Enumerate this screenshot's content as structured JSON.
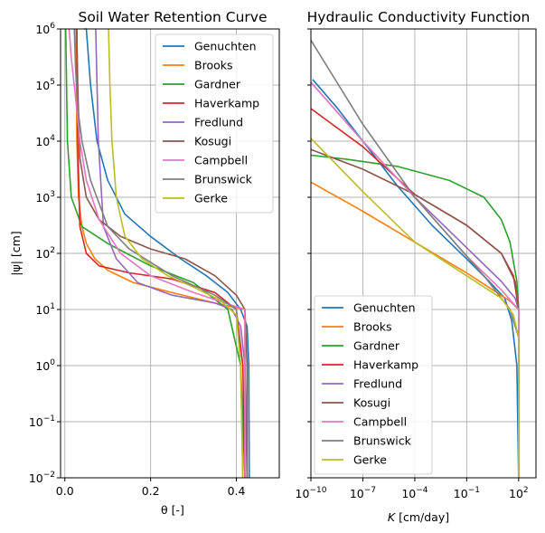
{
  "chart_data": [
    {
      "type": "line",
      "title": "Soil Water Retention Curve",
      "xlabel": "θ [-]",
      "ylabel": "|ψ| [cm]",
      "xlim": [
        -0.01,
        0.5
      ],
      "ylim": [
        0.01,
        1000000
      ],
      "yscale": "log",
      "grid": true,
      "legend_position": "upper-right",
      "x_ticks": [
        {
          "value": 0,
          "label": "0.0"
        },
        {
          "value": 0.2,
          "label": "0.2"
        },
        {
          "value": 0.4,
          "label": "0.4"
        }
      ],
      "y_ticks": [
        {
          "exp": -2,
          "label": "10",
          "sup": "−2"
        },
        {
          "exp": -1,
          "label": "10",
          "sup": "−1"
        },
        {
          "exp": 0,
          "label": "10",
          "sup": "0"
        },
        {
          "exp": 1,
          "label": "10",
          "sup": "1"
        },
        {
          "exp": 2,
          "label": "10",
          "sup": "2"
        },
        {
          "exp": 3,
          "label": "10",
          "sup": "3"
        },
        {
          "exp": 4,
          "label": "10",
          "sup": "4"
        },
        {
          "exp": 5,
          "label": "10",
          "sup": "5"
        },
        {
          "exp": 6,
          "label": "10",
          "sup": "6"
        }
      ],
      "series": [
        {
          "name": "Genuchten",
          "color": "#1f77b4",
          "x": [
            0.43,
            0.429,
            0.425,
            0.41,
            0.38,
            0.33,
            0.27,
            0.2,
            0.14,
            0.1,
            0.075,
            0.06,
            0.05,
            0.045
          ],
          "y": [
            0.01,
            1,
            5,
            10,
            20,
            40,
            80,
            200,
            500,
            2000,
            10000,
            100000,
            1000000,
            1000000
          ]
        },
        {
          "name": "Brooks",
          "color": "#ff7f0e",
          "x": [
            0.42,
            0.42,
            0.42,
            0.35,
            0.25,
            0.16,
            0.1,
            0.07,
            0.05,
            0.04,
            0.032,
            0.028,
            0.026
          ],
          "y": [
            0.01,
            1,
            10,
            13,
            20,
            30,
            50,
            80,
            150,
            300,
            1000,
            10000,
            1000000
          ]
        },
        {
          "name": "Gardner",
          "color": "#2ca02c",
          "x": [
            0.42,
            0.41,
            0.38,
            0.3,
            0.2,
            0.1,
            0.04,
            0.015,
            0.006,
            0.002
          ],
          "y": [
            0.01,
            1,
            10,
            30,
            60,
            150,
            300,
            1000,
            10000,
            1000000
          ]
        },
        {
          "name": "Haverkamp",
          "color": "#d62728",
          "x": [
            0.42,
            0.415,
            0.4,
            0.35,
            0.25,
            0.15,
            0.08,
            0.05,
            0.035,
            0.03,
            0.028
          ],
          "y": [
            0.01,
            1,
            10,
            20,
            35,
            45,
            60,
            100,
            300,
            10000,
            1000000
          ]
        },
        {
          "name": "Fredlund",
          "color": "#9467bd",
          "x": [
            0.425,
            0.42,
            0.41,
            0.39,
            0.35,
            0.25,
            0.17,
            0.12,
            0.09,
            0.078,
            0.072
          ],
          "y": [
            0.01,
            1,
            5,
            10,
            13,
            18,
            30,
            80,
            300,
            10000,
            1000000
          ]
        },
        {
          "name": "Kosugi",
          "color": "#8c564b",
          "x": [
            0.425,
            0.425,
            0.42,
            0.4,
            0.35,
            0.28,
            0.2,
            0.13,
            0.08,
            0.05,
            0.035,
            0.03,
            0.028
          ],
          "y": [
            0.01,
            1,
            10,
            18,
            40,
            80,
            120,
            200,
            400,
            1000,
            5000,
            100000,
            1000000
          ]
        },
        {
          "name": "Campbell",
          "color": "#e377c2",
          "x": [
            0.42,
            0.42,
            0.42,
            0.3,
            0.2,
            0.13,
            0.08,
            0.05,
            0.035,
            0.025,
            0.015,
            0.01
          ],
          "y": [
            0.01,
            1,
            10,
            20,
            40,
            100,
            400,
            2000,
            10000,
            60000,
            300000,
            1000000
          ]
        },
        {
          "name": "Brunswick",
          "color": "#7f7f7f",
          "x": [
            0.415,
            0.41,
            0.4,
            0.35,
            0.25,
            0.15,
            0.1,
            0.06,
            0.04,
            0.03,
            0.025,
            0.022
          ],
          "y": [
            0.01,
            1,
            10,
            18,
            40,
            120,
            300,
            2000,
            10000,
            40000,
            200000,
            1000000
          ]
        },
        {
          "name": "Gerke",
          "color": "#bcbd22",
          "x": [
            0.415,
            0.41,
            0.4,
            0.36,
            0.3,
            0.24,
            0.18,
            0.14,
            0.12,
            0.11,
            0.105,
            0.102
          ],
          "y": [
            0.01,
            1,
            8,
            15,
            25,
            40,
            80,
            200,
            1000,
            10000,
            100000,
            1000000
          ]
        }
      ]
    },
    {
      "type": "line",
      "title": "Hydraulic Conductivity Function",
      "xlabel": "K [cm/day]",
      "xlabel_italic": "K",
      "xlabel_rest": " [cm/day]",
      "ylabel": "",
      "xscale": "log",
      "yscale": "log",
      "xlim_exp": [
        -10,
        3
      ],
      "ylim": [
        0.01,
        1000000
      ],
      "grid": true,
      "legend_position": "lower-left",
      "x_ticks": [
        {
          "exp": -10,
          "label": "10",
          "sup": "−10"
        },
        {
          "exp": -7,
          "label": "10",
          "sup": "−7"
        },
        {
          "exp": -4,
          "label": "10",
          "sup": "−4"
        },
        {
          "exp": -1,
          "label": "10",
          "sup": "−1"
        },
        {
          "exp": 2,
          "label": "10",
          "sup": "2"
        }
      ],
      "series": [
        {
          "name": "Genuchten",
          "color": "#1f77b4",
          "logx": [
            2.0,
            1.9,
            1.6,
            1.2,
            0.3,
            -1.0,
            -3.0,
            -5.0,
            -7.0,
            -8.5,
            -9.9
          ],
          "logy": [
            -2.0,
            0.0,
            0.8,
            1.2,
            1.5,
            1.9,
            2.5,
            3.2,
            4.0,
            4.6,
            5.1
          ]
        },
        {
          "name": "Brooks",
          "color": "#ff7f0e",
          "logx": [
            2.0,
            2.0,
            1.5,
            -1.0,
            -4.0,
            -7.0,
            -10.0
          ],
          "logy": [
            -2.0,
            1.0,
            1.15,
            1.65,
            2.2,
            2.75,
            3.27
          ]
        },
        {
          "name": "Gardner",
          "color": "#2ca02c",
          "logx": [
            2.0,
            2.0,
            1.9,
            1.5,
            1.0,
            0.0,
            -2.0,
            -5.0,
            -8.0,
            -10.0
          ],
          "logy": [
            -2.0,
            1.0,
            1.5,
            2.2,
            2.6,
            3.0,
            3.3,
            3.55,
            3.68,
            3.75
          ]
        },
        {
          "name": "Haverkamp",
          "color": "#d62728",
          "logx": [
            2.0,
            2.0,
            1.7,
            1.0,
            -1.0,
            -4.0,
            -7.0,
            -10.0
          ],
          "logy": [
            -2.0,
            1.0,
            1.6,
            2.0,
            2.5,
            3.05,
            3.9,
            4.58
          ]
        },
        {
          "name": "Fredlund",
          "color": "#9467bd",
          "logx": [
            2.0,
            2.0,
            1.8,
            1.0,
            -1.0,
            -4.0,
            -7.0,
            -10.0
          ],
          "logy": [
            -2.0,
            1.0,
            1.2,
            1.5,
            2.1,
            3.0,
            4.0,
            5.05
          ]
        },
        {
          "name": "Kosugi",
          "color": "#8c564b",
          "logx": [
            2.0,
            2.0,
            1.8,
            1.0,
            -1.0,
            -4.0,
            -7.0,
            -10.0
          ],
          "logy": [
            -2.0,
            1.0,
            1.5,
            2.0,
            2.5,
            3.05,
            3.5,
            3.85
          ]
        },
        {
          "name": "Campbell",
          "color": "#e377c2",
          "logx": [
            2.0,
            2.0,
            1.0,
            -1.0,
            -4.0,
            -7.0,
            -10.0
          ],
          "logy": [
            -2.0,
            1.0,
            1.35,
            1.95,
            3.0,
            4.0,
            5.05
          ]
        },
        {
          "name": "Brunswick",
          "color": "#7f7f7f",
          "logx": [
            2.0,
            2.0,
            1.5,
            0.0,
            -2.0,
            -4.0,
            -7.0,
            -10.0
          ],
          "logy": [
            -2.0,
            0.5,
            1.0,
            1.6,
            2.3,
            3.0,
            4.3,
            5.8
          ]
        },
        {
          "name": "Gerke",
          "color": "#bcbd22",
          "logx": [
            2.0,
            2.0,
            1.7,
            1.0,
            -1.0,
            -4.0,
            -7.0,
            -10.0
          ],
          "logy": [
            -2.0,
            0.5,
            0.9,
            1.2,
            1.6,
            2.2,
            3.1,
            4.05
          ]
        }
      ]
    }
  ]
}
